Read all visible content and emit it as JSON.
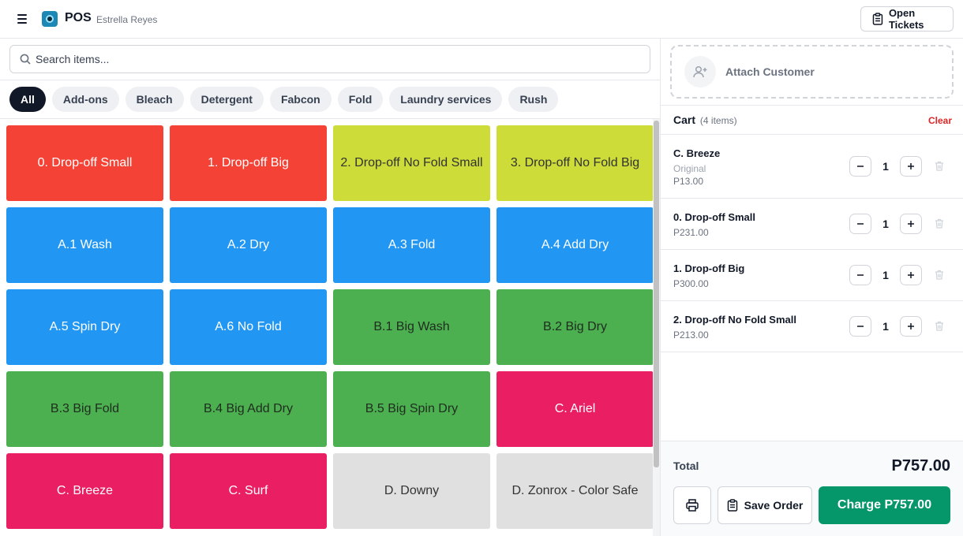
{
  "header": {
    "title": "POS",
    "user": "Estrella Reyes",
    "open_tickets_label": "Open Tickets"
  },
  "search": {
    "placeholder": "Search items...",
    "value": ""
  },
  "categories": [
    {
      "label": "All",
      "active": true
    },
    {
      "label": "Add-ons",
      "active": false
    },
    {
      "label": "Bleach",
      "active": false
    },
    {
      "label": "Detergent",
      "active": false
    },
    {
      "label": "Fabcon",
      "active": false
    },
    {
      "label": "Fold",
      "active": false
    },
    {
      "label": "Laundry services",
      "active": false
    },
    {
      "label": "Rush",
      "active": false
    }
  ],
  "item_colors": {
    "red": "#f44336",
    "lime": "#cddc39",
    "blue": "#2196f3",
    "green": "#4caf50",
    "pink": "#e91e63",
    "gray": "#e0e0e0"
  },
  "items": [
    {
      "label": "0. Drop-off Small",
      "color": "red"
    },
    {
      "label": "1. Drop-off Big",
      "color": "red"
    },
    {
      "label": "2. Drop-off No Fold Small",
      "color": "lime"
    },
    {
      "label": "3. Drop-off No Fold Big",
      "color": "lime"
    },
    {
      "label": "A.1 Wash",
      "color": "blue"
    },
    {
      "label": "A.2 Dry",
      "color": "blue"
    },
    {
      "label": "A.3 Fold",
      "color": "blue"
    },
    {
      "label": "A.4 Add Dry",
      "color": "blue"
    },
    {
      "label": "A.5 Spin Dry",
      "color": "blue"
    },
    {
      "label": "A.6 No Fold",
      "color": "blue"
    },
    {
      "label": "B.1 Big Wash",
      "color": "green"
    },
    {
      "label": "B.2 Big Dry",
      "color": "green"
    },
    {
      "label": "B.3 Big Fold",
      "color": "green"
    },
    {
      "label": "B.4 Big Add Dry",
      "color": "green"
    },
    {
      "label": "B.5 Big Spin Dry",
      "color": "green"
    },
    {
      "label": "C. Ariel",
      "color": "pink"
    },
    {
      "label": "C. Breeze",
      "color": "pink"
    },
    {
      "label": "C. Surf",
      "color": "pink"
    },
    {
      "label": "D. Downy",
      "color": "gray"
    },
    {
      "label": "D. Zonrox - Color Safe",
      "color": "gray"
    }
  ],
  "customer": {
    "attach_label": "Attach Customer"
  },
  "cart": {
    "title": "Cart",
    "count_text": "(4 items)",
    "clear_label": "Clear",
    "items": [
      {
        "name": "C. Breeze",
        "variant": "Original",
        "price": "P13.00",
        "qty": "1"
      },
      {
        "name": "0. Drop-off Small",
        "variant": "",
        "price": "P231.00",
        "qty": "1"
      },
      {
        "name": "1. Drop-off Big",
        "variant": "",
        "price": "P300.00",
        "qty": "1"
      },
      {
        "name": "2. Drop-off No Fold Small",
        "variant": "",
        "price": "P213.00",
        "qty": "1"
      }
    ]
  },
  "footer": {
    "total_label": "Total",
    "total_value": "P757.00",
    "save_label": "Save Order",
    "charge_label": "Charge P757.00"
  },
  "icons": {
    "menu": "menu-icon",
    "logo": "app-logo",
    "tickets": "clipboard-icon",
    "search": "search-icon",
    "attach": "user-plus-icon",
    "minus": "minus-icon",
    "plus": "plus-icon",
    "delete": "trash-icon",
    "print": "printer-icon",
    "save": "clipboard-icon"
  }
}
